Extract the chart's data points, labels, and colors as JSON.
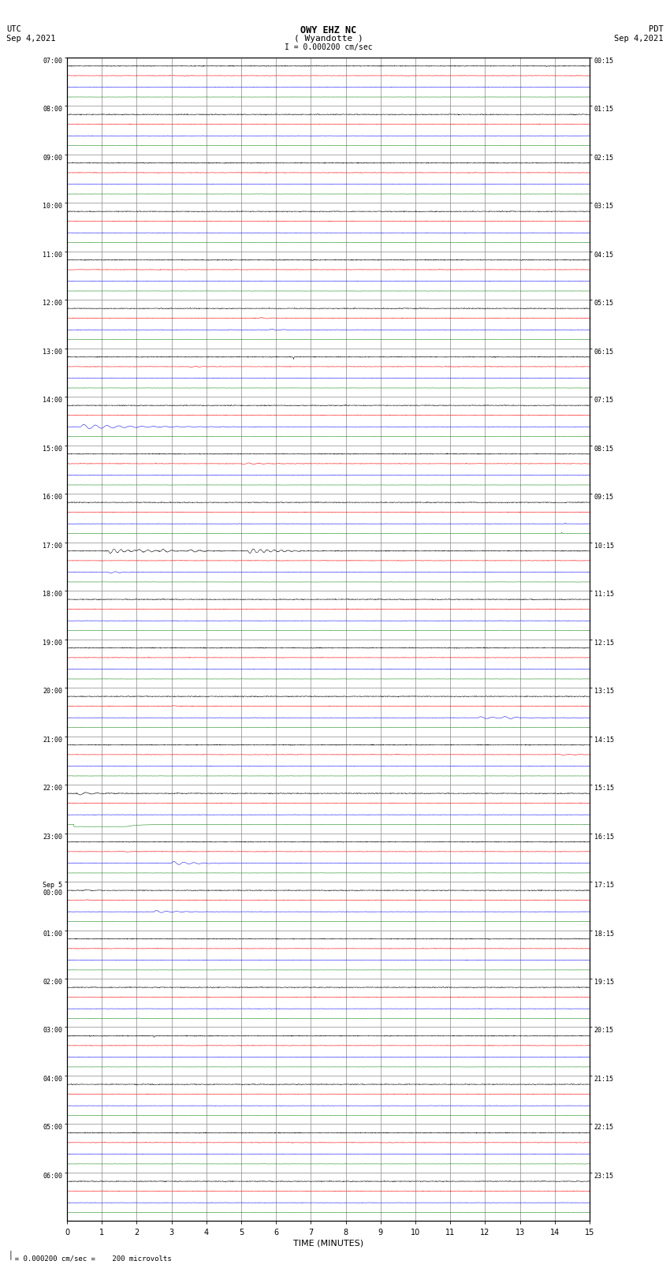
{
  "title_line1": "OWY EHZ NC",
  "title_line2": "( Wyandotte )",
  "scale_label": "I = 0.000200 cm/sec",
  "left_label_line1": "UTC",
  "left_label_line2": "Sep 4,2021",
  "right_label_line1": "PDT",
  "right_label_line2": "Sep 4,2021",
  "xlabel": "TIME (MINUTES)",
  "bottom_note": "  = 0.000200 cm/sec =    200 microvolts",
  "utc_times": [
    "07:00",
    "08:00",
    "09:00",
    "10:00",
    "11:00",
    "12:00",
    "13:00",
    "14:00",
    "15:00",
    "16:00",
    "17:00",
    "18:00",
    "19:00",
    "20:00",
    "21:00",
    "22:00",
    "23:00",
    "Sep 5\n00:00",
    "01:00",
    "02:00",
    "03:00",
    "04:00",
    "05:00",
    "06:00"
  ],
  "pdt_times": [
    "00:15",
    "01:15",
    "02:15",
    "03:15",
    "04:15",
    "05:15",
    "06:15",
    "07:15",
    "08:15",
    "09:15",
    "10:15",
    "11:15",
    "12:15",
    "13:15",
    "14:15",
    "15:15",
    "16:15",
    "17:15",
    "18:15",
    "19:15",
    "20:15",
    "21:15",
    "22:15",
    "23:15"
  ],
  "n_rows": 24,
  "xmin": 0,
  "xmax": 15,
  "colors": [
    "black",
    "red",
    "blue",
    "green"
  ],
  "background_color": "white",
  "grid_color": "#888888",
  "noise_amps": [
    0.006,
    0.004,
    0.003,
    0.002
  ]
}
